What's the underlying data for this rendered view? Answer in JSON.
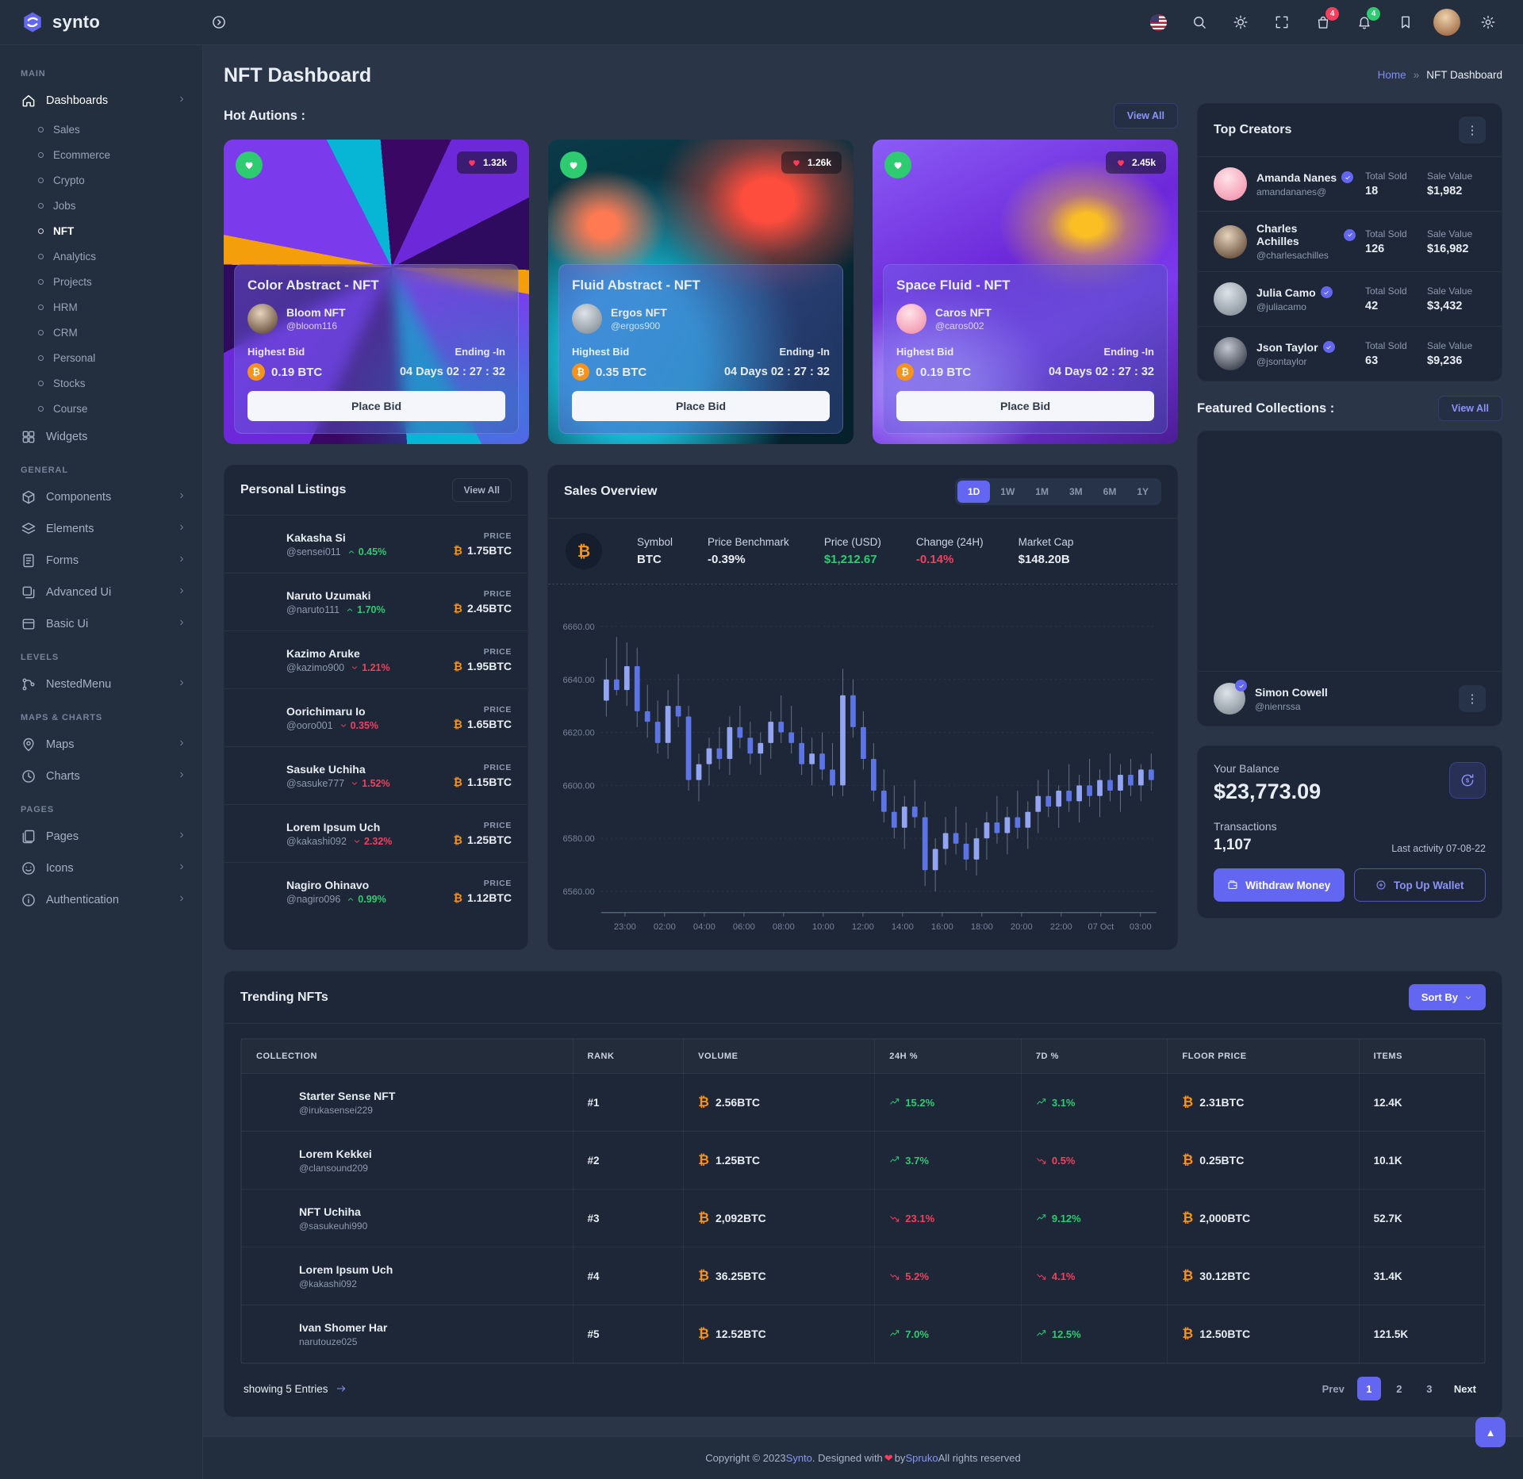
{
  "brand": {
    "name": "synto"
  },
  "badges": {
    "cart": "4",
    "bell": "4"
  },
  "page": {
    "title": "NFT Dashboard"
  },
  "breadcrumb": {
    "home": "Home",
    "separator": "»",
    "current": "NFT Dashboard"
  },
  "sidebar": {
    "sections": [
      {
        "label": "MAIN",
        "items": [
          {
            "label": "Dashboards",
            "icon": "home-icon",
            "active": true,
            "chevron": true,
            "children": [
              "Sales",
              "Ecommerce",
              "Crypto",
              "Jobs",
              "NFT",
              "Analytics",
              "Projects",
              "HRM",
              "CRM",
              "Personal",
              "Stocks",
              "Course"
            ],
            "active_child": "NFT"
          },
          {
            "label": "Widgets",
            "icon": "widgets-icon",
            "chevron": false
          }
        ]
      },
      {
        "label": "GENERAL",
        "items": [
          {
            "label": "Components",
            "icon": "components-icon",
            "chevron": true
          },
          {
            "label": "Elements",
            "icon": "elements-icon",
            "chevron": true
          },
          {
            "label": "Forms",
            "icon": "forms-icon",
            "chevron": true
          },
          {
            "label": "Advanced Ui",
            "icon": "advanced-ui-icon",
            "chevron": true
          },
          {
            "label": "Basic Ui",
            "icon": "basic-ui-icon",
            "chevron": true
          }
        ]
      },
      {
        "label": "LEVELS",
        "items": [
          {
            "label": "NestedMenu",
            "icon": "nested-menu-icon",
            "chevron": true
          }
        ]
      },
      {
        "label": "MAPS & CHARTS",
        "items": [
          {
            "label": "Maps",
            "icon": "maps-icon",
            "chevron": true
          },
          {
            "label": "Charts",
            "icon": "charts-icon",
            "chevron": true
          }
        ]
      },
      {
        "label": "PAGES",
        "items": [
          {
            "label": "Pages",
            "icon": "pages-icon",
            "chevron": true
          },
          {
            "label": "Icons",
            "icon": "icons-icon",
            "chevron": true
          },
          {
            "label": "Authentication",
            "icon": "authentication-icon",
            "chevron": true
          }
        ]
      }
    ]
  },
  "hot_auctions": {
    "heading": "Hot Autions :",
    "view_all": "View All",
    "cards": [
      {
        "title": "Color Abstract - NFT",
        "creator": "Bloom NFT",
        "handle": "@bloom116",
        "likes": "1.32k",
        "bid_label": "Highest Bid",
        "bid": "0.19 BTC",
        "ending_label": "Ending -In",
        "ending": "04 Days 02 : 27 : 32",
        "cta": "Place Bid",
        "art": "purple-swirl",
        "avatar": "av-tan"
      },
      {
        "title": "Fluid Abstract - NFT",
        "creator": "Ergos NFT",
        "handle": "@ergos900",
        "likes": "1.26k",
        "bid_label": "Highest Bid",
        "bid": "0.35 BTC",
        "ending_label": "Ending -In",
        "ending": "04 Days 02 : 27 : 32",
        "cta": "Place Bid",
        "art": "teal-smoke",
        "avatar": "av-gray"
      },
      {
        "title": "Space Fluid - NFT",
        "creator": "Caros NFT",
        "handle": "@caros002",
        "likes": "2.45k",
        "bid_label": "Highest Bid",
        "bid": "0.19 BTC",
        "ending_label": "Ending -In",
        "ending": "04 Days 02 : 27 : 32",
        "cta": "Place Bid",
        "art": "violet-wave",
        "avatar": "av-pink"
      }
    ]
  },
  "personal_listings": {
    "heading": "Personal Listings",
    "view_all": "View All",
    "price_label": "PRICE",
    "items": [
      {
        "name": "Kakasha Si",
        "handle": "@sensei011",
        "change": "0.45%",
        "direction": "up",
        "price": "1.75BTC",
        "thumb": "th-hand-gray"
      },
      {
        "name": "Naruto Uzumaki",
        "handle": "@naruto111",
        "change": "1.70%",
        "direction": "up",
        "price": "2.45BTC",
        "thumb": "th-gold-orb"
      },
      {
        "name": "Kazimo Aruke",
        "handle": "@kazimo900",
        "change": "1.21%",
        "direction": "down",
        "price": "1.95BTC",
        "thumb": "th-indigo-lines"
      },
      {
        "name": "Oorichimaru Io",
        "handle": "@ooro001",
        "change": "0.35%",
        "direction": "down",
        "price": "1.65BTC",
        "thumb": "th-red-blue-smoke"
      },
      {
        "name": "Sasuke Uchiha",
        "handle": "@sasuke777",
        "change": "1.52%",
        "direction": "down",
        "price": "1.15BTC",
        "thumb": "th-pink-sphere"
      },
      {
        "name": "Lorem Ipsum Uch",
        "handle": "@kakashi092",
        "change": "2.32%",
        "direction": "down",
        "price": "1.25BTC",
        "thumb": "th-gold-rings"
      },
      {
        "name": "Nagiro Ohinavo",
        "handle": "@nagiro096",
        "change": "0.99%",
        "direction": "up",
        "price": "1.12BTC",
        "thumb": "th-sunset-hands"
      }
    ]
  },
  "sales_overview": {
    "heading": "Sales Overview",
    "ranges": [
      "1D",
      "1W",
      "1M",
      "3M",
      "6M",
      "1Y"
    ],
    "active_range": "1D",
    "stats": [
      {
        "label": "Symbol",
        "value": "BTC",
        "tone": "plain"
      },
      {
        "label": "Price Benchmark",
        "value": "-0.39%",
        "tone": "plain"
      },
      {
        "label": "Price (USD)",
        "value": "$1,212.67",
        "tone": "success"
      },
      {
        "label": "Change (24H)",
        "value": "-0.14%",
        "tone": "danger"
      },
      {
        "label": "Market Cap",
        "value": "$148.20B",
        "tone": "plain"
      }
    ]
  },
  "chart_data": {
    "type": "candlestick",
    "title": "Sales Overview BTC price",
    "ylim": [
      6552,
      6668
    ],
    "y_ticks": [
      "6660.00",
      "6640.00",
      "6620.00",
      "6600.00",
      "6580.00",
      "6560.00"
    ],
    "x_ticks": [
      "23:00",
      "02:00",
      "04:00",
      "06:00",
      "08:00",
      "10:00",
      "12:00",
      "14:00",
      "16:00",
      "18:00",
      "20:00",
      "22:00",
      "07 Oct",
      "03:00"
    ],
    "up_color": "#93a5f2",
    "down_color": "#5d74e7",
    "candles": [
      [
        6632,
        6648,
        6626,
        6640
      ],
      [
        6640,
        6656,
        6634,
        6636
      ],
      [
        6636,
        6654,
        6630,
        6645
      ],
      [
        6645,
        6652,
        6622,
        6628
      ],
      [
        6628,
        6638,
        6618,
        6624
      ],
      [
        6624,
        6632,
        6612,
        6616
      ],
      [
        6616,
        6636,
        6610,
        6630
      ],
      [
        6630,
        6642,
        6622,
        6626
      ],
      [
        6626,
        6630,
        6598,
        6602
      ],
      [
        6602,
        6612,
        6594,
        6608
      ],
      [
        6608,
        6618,
        6600,
        6614
      ],
      [
        6614,
        6622,
        6606,
        6610
      ],
      [
        6610,
        6626,
        6604,
        6622
      ],
      [
        6622,
        6630,
        6614,
        6618
      ],
      [
        6618,
        6624,
        6608,
        6612
      ],
      [
        6612,
        6620,
        6604,
        6616
      ],
      [
        6616,
        6628,
        6610,
        6624
      ],
      [
        6624,
        6634,
        6616,
        6620
      ],
      [
        6620,
        6630,
        6612,
        6616
      ],
      [
        6616,
        6622,
        6604,
        6608
      ],
      [
        6608,
        6618,
        6600,
        6612
      ],
      [
        6612,
        6620,
        6602,
        6606
      ],
      [
        6606,
        6616,
        6596,
        6600
      ],
      [
        6600,
        6644,
        6596,
        6634
      ],
      [
        6634,
        6640,
        6618,
        6622
      ],
      [
        6622,
        6628,
        6606,
        6610
      ],
      [
        6610,
        6616,
        6594,
        6598
      ],
      [
        6598,
        6606,
        6586,
        6590
      ],
      [
        6590,
        6600,
        6580,
        6584
      ],
      [
        6584,
        6596,
        6576,
        6592
      ],
      [
        6592,
        6602,
        6584,
        6588
      ],
      [
        6588,
        6594,
        6562,
        6568
      ],
      [
        6568,
        6580,
        6560,
        6576
      ],
      [
        6576,
        6588,
        6570,
        6582
      ],
      [
        6582,
        6592,
        6574,
        6578
      ],
      [
        6578,
        6586,
        6568,
        6572
      ],
      [
        6572,
        6584,
        6566,
        6580
      ],
      [
        6580,
        6590,
        6572,
        6586
      ],
      [
        6586,
        6596,
        6578,
        6582
      ],
      [
        6582,
        6592,
        6574,
        6588
      ],
      [
        6588,
        6598,
        6580,
        6584
      ],
      [
        6584,
        6594,
        6576,
        6590
      ],
      [
        6590,
        6602,
        6582,
        6596
      ],
      [
        6596,
        6606,
        6588,
        6592
      ],
      [
        6592,
        6600,
        6584,
        6598
      ],
      [
        6598,
        6608,
        6590,
        6594
      ],
      [
        6594,
        6604,
        6586,
        6600
      ],
      [
        6600,
        6610,
        6592,
        6596
      ],
      [
        6596,
        6606,
        6588,
        6602
      ],
      [
        6602,
        6612,
        6594,
        6598
      ],
      [
        6598,
        6608,
        6590,
        6604
      ],
      [
        6604,
        6610,
        6596,
        6600
      ],
      [
        6600,
        6608,
        6594,
        6606
      ],
      [
        6606,
        6612,
        6598,
        6602
      ]
    ]
  },
  "top_creators": {
    "heading": "Top Creators",
    "total_sold_label": "Total Sold",
    "sale_value_label": "Sale Value",
    "creators": [
      {
        "name": "Amanda Nanes",
        "handle": "amandananes@",
        "sold": "18",
        "value": "$1,982",
        "avatar": "av-pink"
      },
      {
        "name": "Charles Achilles",
        "handle": "@charlesachilles",
        "sold": "126",
        "value": "$16,982",
        "avatar": "av-tan"
      },
      {
        "name": "Julia Camo",
        "handle": "@juliacamo",
        "sold": "42",
        "value": "$3,432",
        "avatar": "av-gray"
      },
      {
        "name": "Json Taylor",
        "handle": "@jsontaylor",
        "sold": "63",
        "value": "$9,236",
        "avatar": "av-dark"
      }
    ]
  },
  "featured_collections": {
    "heading": "Featured Collections :",
    "view_all": "View All",
    "images": [
      "th-sunset-hands",
      "th-heart-head",
      "th-cap-man",
      "th-blue-bust"
    ],
    "owner": {
      "name": "Simon Cowell",
      "handle": "@nienrssa"
    }
  },
  "balance": {
    "label": "Your Balance",
    "amount": "$23,773.09",
    "transactions_label": "Transactions",
    "transactions": "1,107",
    "last_activity": "Last activity 07-08-22",
    "withdraw": "Withdraw Money",
    "topup": "Top Up Wallet"
  },
  "trending": {
    "heading": "Trending NFTs",
    "sort_by": "Sort By",
    "columns": [
      "COLLECTION",
      "RANK",
      "VOLUME",
      "24H %",
      "7D %",
      "FLOOR PRICE",
      "ITEMS"
    ],
    "rows": [
      {
        "name": "Starter Sense NFT",
        "handle": "@irukasensei229",
        "rank": "#1",
        "volume": "2.56BTC",
        "h24": "15.2%",
        "h24_dir": "up",
        "d7": "3.1%",
        "d7_dir": "up",
        "floor": "2.31BTC",
        "items": "12.4K",
        "thumb": "th-sunset-hands"
      },
      {
        "name": "Lorem Kekkei",
        "handle": "@clansound209",
        "rank": "#2",
        "volume": "1.25BTC",
        "h24": "3.7%",
        "h24_dir": "up",
        "d7": "0.5%",
        "d7_dir": "down",
        "floor": "0.25BTC",
        "items": "10.1K",
        "thumb": "th-heart-head"
      },
      {
        "name": "NFT Uchiha",
        "handle": "@sasukeuhi990",
        "rank": "#3",
        "volume": "2,092BTC",
        "h24": "23.1%",
        "h24_dir": "down",
        "d7": "9.12%",
        "d7_dir": "up",
        "floor": "2,000BTC",
        "items": "52.7K",
        "thumb": "th-cap-man"
      },
      {
        "name": "Lorem Ipsum Uch",
        "handle": "@kakashi092",
        "rank": "#4",
        "volume": "36.25BTC",
        "h24": "5.2%",
        "h24_dir": "down",
        "d7": "4.1%",
        "d7_dir": "down",
        "floor": "30.12BTC",
        "items": "31.4K",
        "thumb": "th-blue-bust"
      },
      {
        "name": "Ivan Shomer Har",
        "handle": "narutouze025",
        "rank": "#5",
        "volume": "12.52BTC",
        "h24": "7.0%",
        "h24_dir": "up",
        "d7": "12.5%",
        "d7_dir": "up",
        "floor": "12.50BTC",
        "items": "121.5K",
        "thumb": "th-hand-gray"
      }
    ],
    "summary": "showing 5 Entries",
    "pagination": {
      "prev": "Prev",
      "pages": [
        "1",
        "2",
        "3"
      ],
      "active": "1",
      "next": "Next"
    }
  },
  "footer": {
    "parts": [
      {
        "t": "Copyright © 2023 ",
        "tone": "muted"
      },
      {
        "t": "Synto",
        "tone": "accent"
      },
      {
        "t": ". Designed with ",
        "tone": "muted"
      },
      {
        "t": "❤",
        "tone": "heart"
      },
      {
        "t": " by ",
        "tone": "muted"
      },
      {
        "t": "Spruko",
        "tone": "accent"
      },
      {
        "t": " All rights reserved",
        "tone": "muted"
      }
    ]
  },
  "colors": {
    "accent": "#6366f1",
    "success": "#2ecb70",
    "danger": "#f43f5e",
    "bitcoin": "#f7931a"
  }
}
